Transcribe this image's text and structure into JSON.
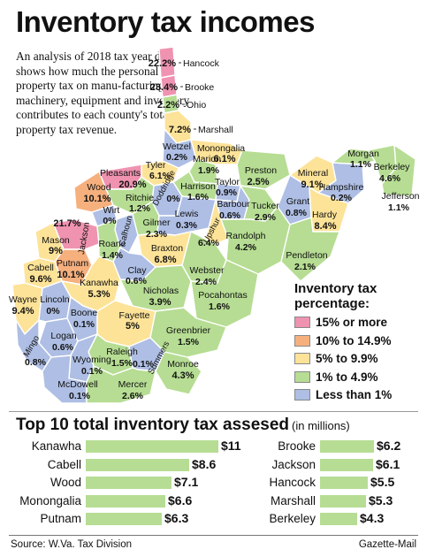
{
  "title": "Inventory tax incomes",
  "intro": "An analysis of 2018 tax year data shows how much the personal property tax on manu-facturing machinery, equipment and inventory contributes to each county's total property tax revenue.",
  "colors": {
    "c15": "#ef93b0",
    "c10": "#f6b07e",
    "c5": "#fde398",
    "c1": "#b6dd93",
    "c0": "#aebee4",
    "bar": "#b6dd93",
    "border": "#ffffff"
  },
  "legend": {
    "title": "Inventory tax percentage:",
    "items": [
      {
        "label": "15% or more",
        "color": "#ef93b0"
      },
      {
        "label": "10% to 14.9%",
        "color": "#f6b07e"
      },
      {
        "label": "5% to 9.9%",
        "color": "#fde398"
      },
      {
        "label": "1% to 4.9%",
        "color": "#b6dd93"
      },
      {
        "label": "Less than 1%",
        "color": "#aebee4"
      }
    ]
  },
  "counties": [
    {
      "name": "Hancock",
      "value": "22.2%",
      "cat": "c15"
    },
    {
      "name": "Brooke",
      "value": "23.4%",
      "cat": "c15"
    },
    {
      "name": "Ohio",
      "value": "2.2%",
      "cat": "c1"
    },
    {
      "name": "Marshall",
      "value": "7.2%",
      "cat": "c5"
    },
    {
      "name": "Wetzel",
      "value": "0.2%",
      "cat": "c0"
    },
    {
      "name": "Monongalia",
      "value": "6.1%",
      "cat": "c5"
    },
    {
      "name": "Marion",
      "value": "1.9%",
      "cat": "c1"
    },
    {
      "name": "Preston",
      "value": "2.5%",
      "cat": "c1"
    },
    {
      "name": "Tyler",
      "value": "6.1%",
      "cat": "c5"
    },
    {
      "name": "Pleasants",
      "value": "20.9%",
      "cat": "c15"
    },
    {
      "name": "Doddridge",
      "value": "0%",
      "cat": "c0"
    },
    {
      "name": "Harrison",
      "value": "1.6%",
      "cat": "c1"
    },
    {
      "name": "Taylor",
      "value": "0.9%",
      "cat": "c0"
    },
    {
      "name": "Wood",
      "value": "10.1%",
      "cat": "c10"
    },
    {
      "name": "Ritchie",
      "value": "1.2%",
      "cat": "c1"
    },
    {
      "name": "Barbour",
      "value": "0.6%",
      "cat": "c0"
    },
    {
      "name": "Tucker",
      "value": "2.9%",
      "cat": "c1"
    },
    {
      "name": "Grant",
      "value": "0.8%",
      "cat": "c0"
    },
    {
      "name": "Mineral",
      "value": "9.1%",
      "cat": "c5"
    },
    {
      "name": "Hampshire",
      "value": "0.2%",
      "cat": "c0"
    },
    {
      "name": "Morgan",
      "value": "1.1%",
      "cat": "c1"
    },
    {
      "name": "Berkeley",
      "value": "4.6%",
      "cat": "c1"
    },
    {
      "name": "Jefferson",
      "value": "1.1%",
      "cat": "c1"
    },
    {
      "name": "Hardy",
      "value": "8.4%",
      "cat": "c5"
    },
    {
      "name": "Wirt",
      "value": "0%",
      "cat": "c0"
    },
    {
      "name": "Calhoun",
      "value": "0.1%",
      "cat": "c0"
    },
    {
      "name": "Gilmer",
      "value": "2.3%",
      "cat": "c1"
    },
    {
      "name": "Lewis",
      "value": "0.3%",
      "cat": "c0"
    },
    {
      "name": "Upshur",
      "value": "6.4%",
      "cat": "c5"
    },
    {
      "name": "Randolph",
      "value": "4.2%",
      "cat": "c1"
    },
    {
      "name": "Jackson",
      "value": "21.7%",
      "cat": "c15"
    },
    {
      "name": "Roane",
      "value": "1.4%",
      "cat": "c1"
    },
    {
      "name": "Braxton",
      "value": "6.8%",
      "cat": "c5"
    },
    {
      "name": "Mason",
      "value": "9%",
      "cat": "c5"
    },
    {
      "name": "Pendleton",
      "value": "2.1%",
      "cat": "c1"
    },
    {
      "name": "Webster",
      "value": "2.4%",
      "cat": "c1"
    },
    {
      "name": "Clay",
      "value": "0.6%",
      "cat": "c0"
    },
    {
      "name": "Putnam",
      "value": "10.1%",
      "cat": "c10"
    },
    {
      "name": "Cabell",
      "value": "9.6%",
      "cat": "c5"
    },
    {
      "name": "Kanawha",
      "value": "5.3%",
      "cat": "c5"
    },
    {
      "name": "Nicholas",
      "value": "3.9%",
      "cat": "c1"
    },
    {
      "name": "Pocahontas",
      "value": "1.6%",
      "cat": "c1"
    },
    {
      "name": "Wayne",
      "value": "9.4%",
      "cat": "c5"
    },
    {
      "name": "Lincoln",
      "value": "0%",
      "cat": "c0"
    },
    {
      "name": "Boone",
      "value": "0.1%",
      "cat": "c0"
    },
    {
      "name": "Fayette",
      "value": "5%",
      "cat": "c5"
    },
    {
      "name": "Greenbrier",
      "value": "1.5%",
      "cat": "c1"
    },
    {
      "name": "Logan",
      "value": "0.6%",
      "cat": "c0"
    },
    {
      "name": "Mingo",
      "value": "0.8%",
      "cat": "c0"
    },
    {
      "name": "Raleigh",
      "value": "1.5%",
      "cat": "c1"
    },
    {
      "name": "Wyoming",
      "value": "0.1%",
      "cat": "c0"
    },
    {
      "name": "Summers",
      "value": "0.1%",
      "cat": "c0"
    },
    {
      "name": "Monroe",
      "value": "4.3%",
      "cat": "c1"
    },
    {
      "name": "McDowell",
      "value": "0.1%",
      "cat": "c0"
    },
    {
      "name": "Mercer",
      "value": "2.6%",
      "cat": "c1"
    }
  ],
  "top10": {
    "heading": "Top 10 total inventory tax assesed",
    "unit": "(in millions)",
    "max_value": 11,
    "left": [
      {
        "county": "Kanawha",
        "value": 11,
        "label": "$11"
      },
      {
        "county": "Cabell",
        "value": 8.6,
        "label": "$8.6"
      },
      {
        "county": "Wood",
        "value": 7.1,
        "label": "$7.1"
      },
      {
        "county": "Monongalia",
        "value": 6.6,
        "label": "$6.6"
      },
      {
        "county": "Putnam",
        "value": 6.3,
        "label": "$6.3"
      }
    ],
    "right": [
      {
        "county": "Brooke",
        "value": 6.2,
        "label": "$6.2"
      },
      {
        "county": "Jackson",
        "value": 6.1,
        "label": "$6.1"
      },
      {
        "county": "Hancock",
        "value": 5.5,
        "label": "$5.5"
      },
      {
        "county": "Marshall",
        "value": 5.3,
        "label": "$5.3"
      },
      {
        "county": "Berkeley",
        "value": 4.3,
        "label": "$4.3"
      }
    ]
  },
  "source": "Source: W.Va. Tax Division",
  "credit": "Gazette-Mail"
}
